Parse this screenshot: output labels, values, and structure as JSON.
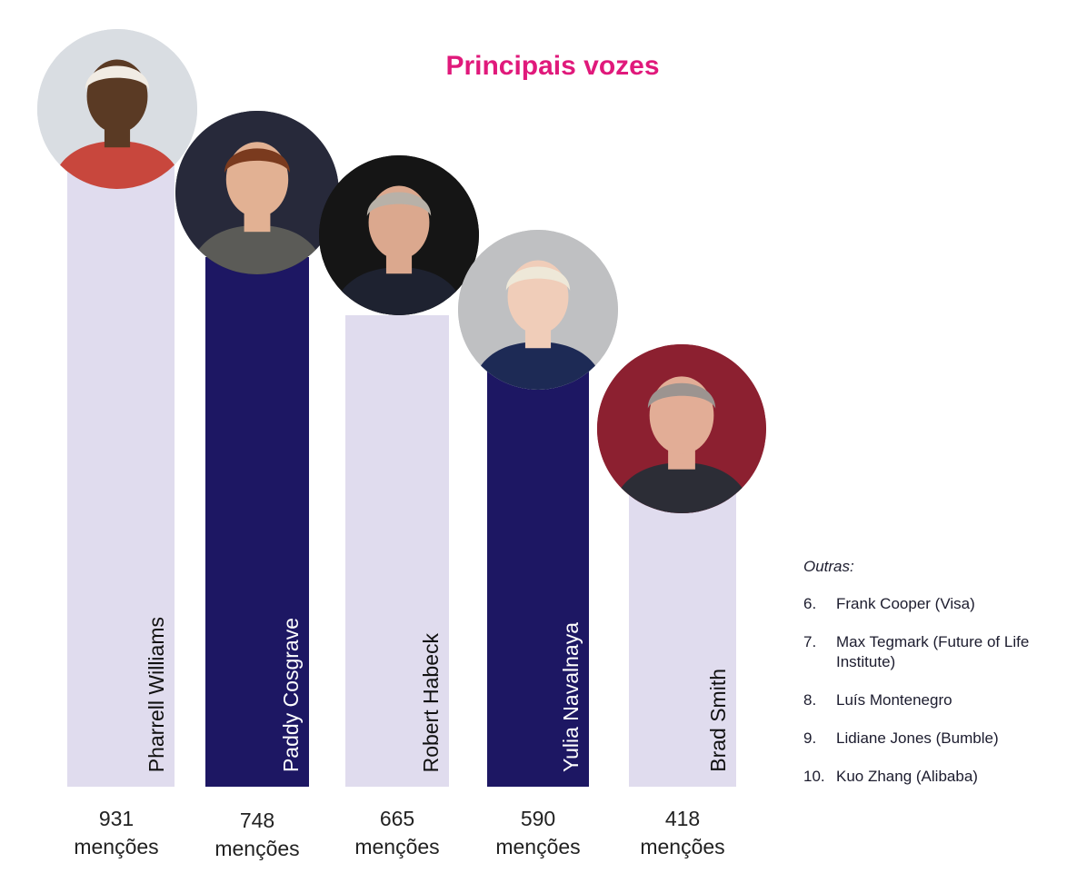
{
  "chart_data": {
    "type": "bar",
    "title": "Principais vozes",
    "categories": [
      "Pharrell Williams",
      "Paddy Cosgrave",
      "Robert Habeck",
      "Yulia Navalnaya",
      "Brad Smith"
    ],
    "values": [
      931,
      748,
      665,
      590,
      418
    ],
    "value_labels": [
      "931",
      "748",
      "665",
      "590",
      "418"
    ],
    "unit_label": "menções",
    "ylim": [
      0,
      931
    ],
    "grid": false,
    "bar_colors": [
      "#e0dcee",
      "#1d1763",
      "#e0dcee",
      "#1d1763",
      "#e0dcee"
    ],
    "label_colors": [
      "#111111",
      "#ffffff",
      "#111111",
      "#ffffff",
      "#111111"
    ]
  },
  "avatars": [
    {
      "icon": "person-cap-sunglasses-icon",
      "bg": "#d9dde2",
      "skin": "#5a3a24",
      "hair": "#f1ece4",
      "shirt": "#c8473d"
    },
    {
      "icon": "person-glasses-icon",
      "bg": "#27293a",
      "skin": "#e2b193",
      "hair": "#7a3a1e",
      "shirt": "#5b5b57"
    },
    {
      "icon": "person-grey-hair-icon",
      "bg": "#151515",
      "skin": "#dba88e",
      "hair": "#b8b1a8",
      "shirt": "#1e2230"
    },
    {
      "icon": "person-blonde-icon",
      "bg": "#bfc0c2",
      "skin": "#f0cdb9",
      "hair": "#eee8d8",
      "shirt": "#1d2a55"
    },
    {
      "icon": "person-speaker-icon",
      "bg": "#8c2030",
      "skin": "#e2ad96",
      "hair": "#9c9490",
      "shirt": "#2c2d36"
    }
  ],
  "colors": {
    "title": "#e0197b",
    "bar_light": "#e0dcee",
    "bar_dark": "#1d1763"
  },
  "others": {
    "title": "Outras:",
    "items": [
      {
        "num": "6.",
        "text": "Frank Cooper (Visa)"
      },
      {
        "num": "7.",
        "text": "Max Tegmark (Future of Life Institute)"
      },
      {
        "num": "8.",
        "text": "Luís Montenegro"
      },
      {
        "num": "9.",
        "text": "Lidiane Jones (Bumble)"
      },
      {
        "num": "10.",
        "text": "Kuo Zhang (Alibaba)"
      }
    ]
  }
}
